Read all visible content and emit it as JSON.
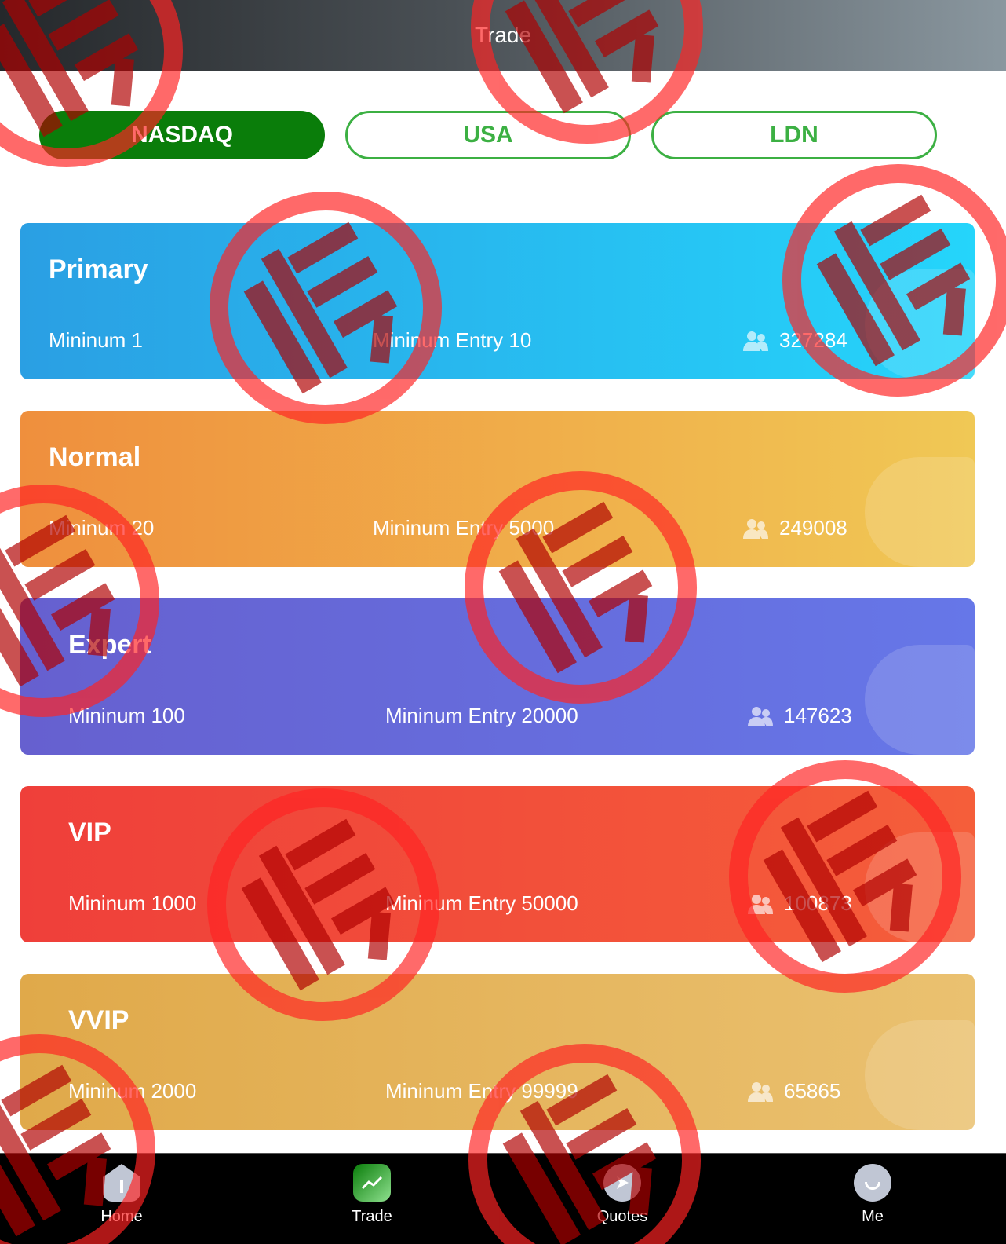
{
  "header": {
    "title": "Trade"
  },
  "tabs": [
    {
      "label": "NASDAQ",
      "active": true
    },
    {
      "label": "USA",
      "active": false
    },
    {
      "label": "LDN",
      "active": false
    }
  ],
  "cards": [
    {
      "title": "Primary",
      "min": "Mininum 1",
      "entry": "Mininum Entry 10",
      "count": "327284",
      "colors": [
        "#2a9fe3",
        "#25d5fb"
      ]
    },
    {
      "title": "Normal",
      "min": "Mininum 20",
      "entry": "Mininum Entry 5000",
      "count": "249008",
      "colors": [
        "#ef8f3d",
        "#f0c855"
      ]
    },
    {
      "title": "Expert",
      "min": "Mininum 100",
      "entry": "Mininum Entry 20000",
      "count": "147623",
      "colors": [
        "#6660cf",
        "#6677e8"
      ]
    },
    {
      "title": "VIP",
      "min": "Mininum 1000",
      "entry": "Mininum Entry 50000",
      "count": "100873",
      "colors": [
        "#ef3f3a",
        "#f55e3a"
      ]
    },
    {
      "title": "VVIP",
      "min": "Mininum 2000",
      "entry": "Mininum Entry 99999",
      "count": "65865",
      "colors": [
        "#e0a94a",
        "#eac170"
      ]
    }
  ],
  "nav": [
    {
      "label": "Home",
      "icon": "home-icon"
    },
    {
      "label": "Trade",
      "icon": "trade-chart-icon"
    },
    {
      "label": "Quotes",
      "icon": "quotes-icon"
    },
    {
      "label": "Me",
      "icon": "profile-icon"
    }
  ],
  "stamp": {
    "text": "假",
    "color": "#ff2323"
  }
}
